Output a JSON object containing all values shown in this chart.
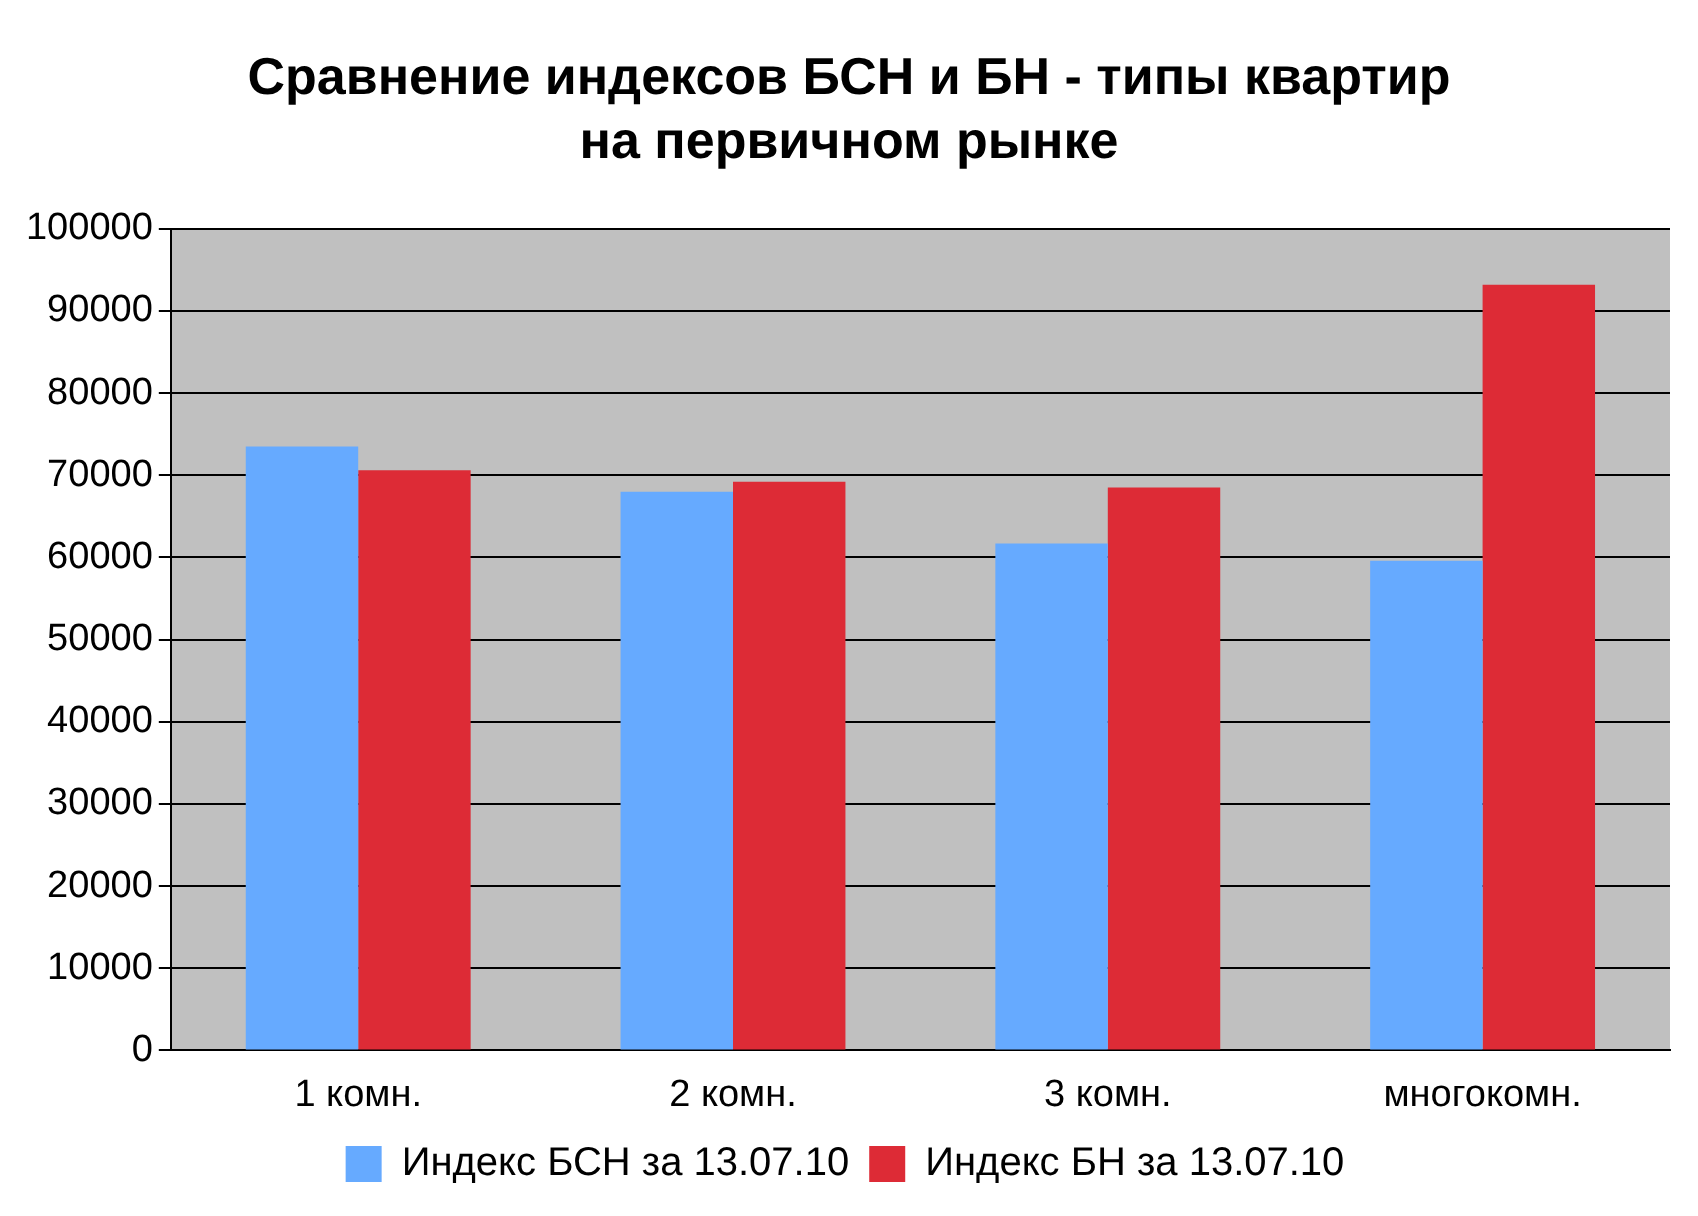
{
  "chart_data": {
    "type": "bar",
    "title": "Сравнение индексов БСН и БН - типы квартир на первичном рынке",
    "categories": [
      "1 комн.",
      "2 комн.",
      "3 комн.",
      "многокомн."
    ],
    "series": [
      {
        "name": "Индекс БСН за 13.07.10",
        "color": "#66aaff",
        "values": [
          73500,
          68000,
          61700,
          59600
        ]
      },
      {
        "name": "Индекс БН за 13.07.10",
        "color": "#dd2b36",
        "values": [
          70600,
          69200,
          68500,
          93200
        ]
      }
    ],
    "ylim": [
      0,
      100000
    ],
    "yticks": [
      0,
      10000,
      20000,
      30000,
      40000,
      50000,
      60000,
      70000,
      80000,
      90000,
      100000
    ],
    "grid": "y",
    "legend": "bottom"
  }
}
